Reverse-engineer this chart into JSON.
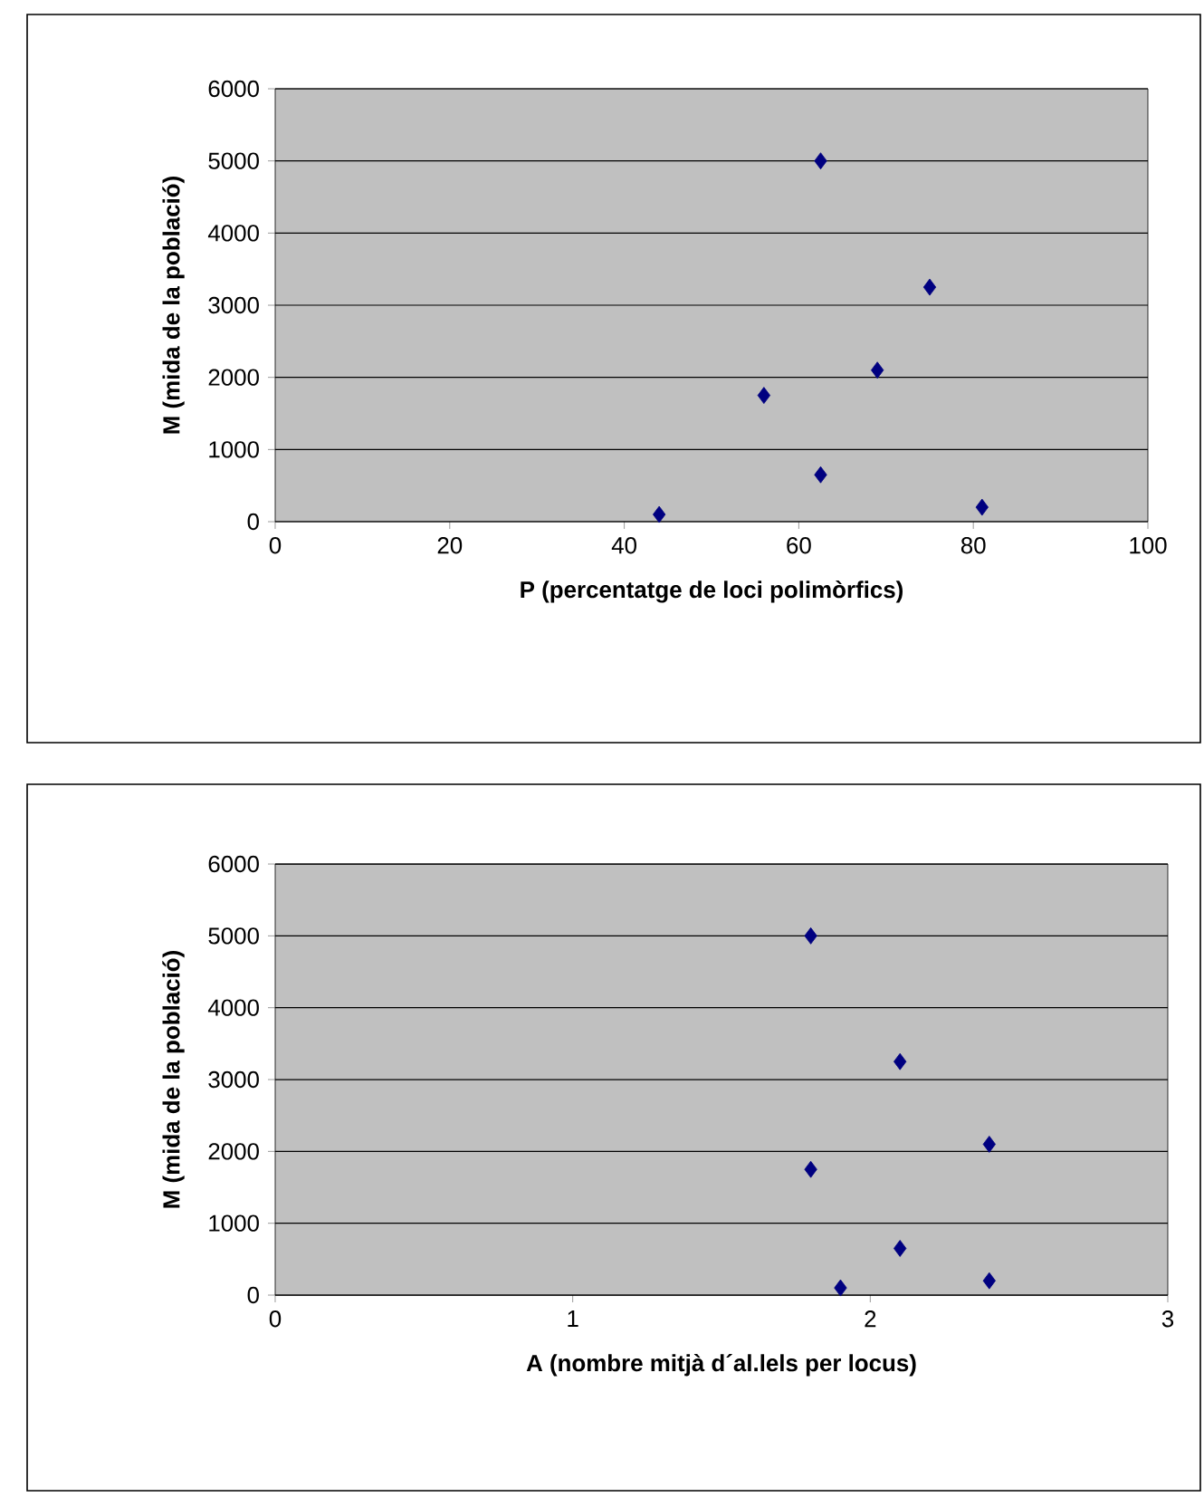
{
  "chart_data": [
    {
      "type": "scatter",
      "xlabel": "P (percentatge de loci polimòrfics)",
      "ylabel": "M (mida de la població)",
      "xlim": [
        0,
        100
      ],
      "xticks": [
        0,
        20,
        40,
        60,
        80,
        100
      ],
      "ylim": [
        0,
        6000
      ],
      "yticks": [
        0,
        1000,
        2000,
        3000,
        4000,
        5000,
        6000
      ],
      "grid": "y",
      "marker": "diamond",
      "series": [
        {
          "color": "#000080",
          "x": [
            44,
            56,
            62.5,
            62.5,
            69,
            75,
            81
          ],
          "values": [
            100,
            1750,
            650,
            5000,
            2100,
            3250,
            200
          ]
        }
      ]
    },
    {
      "type": "scatter",
      "xlabel": "A (nombre mitjà d´al.lels per locus)",
      "ylabel": "M (mida de la població)",
      "xlim": [
        0,
        3
      ],
      "xticks": [
        0,
        1,
        2,
        3
      ],
      "ylim": [
        0,
        6000
      ],
      "yticks": [
        0,
        1000,
        2000,
        3000,
        4000,
        5000,
        6000
      ],
      "grid": "y",
      "marker": "diamond",
      "series": [
        {
          "color": "#000080",
          "x": [
            1.8,
            1.8,
            2.1,
            2.1,
            1.9,
            2.4,
            2.4
          ],
          "values": [
            5000,
            1750,
            3250,
            650,
            100,
            2100,
            200
          ]
        }
      ]
    }
  ]
}
